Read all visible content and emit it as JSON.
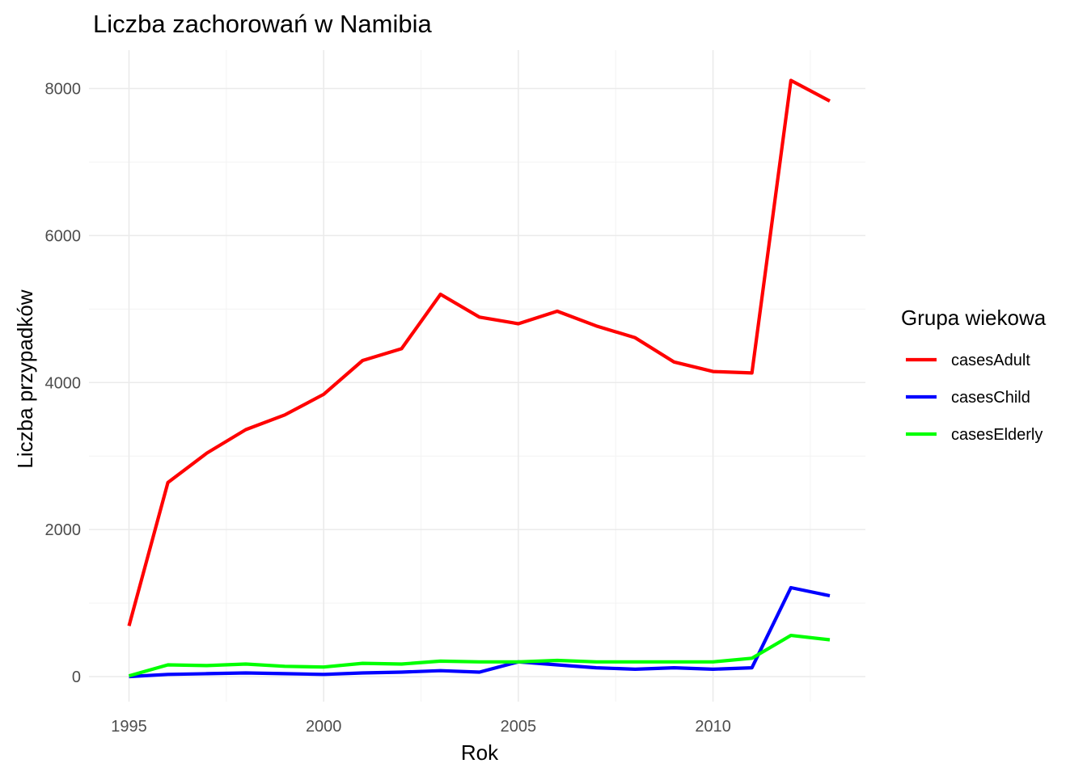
{
  "chart_data": {
    "type": "line",
    "title": "Liczba zachorowań w Namibia",
    "xlabel": "Rok",
    "ylabel": "Liczba przypadków",
    "x": [
      1995,
      1996,
      1997,
      1998,
      1999,
      2000,
      2001,
      2002,
      2003,
      2004,
      2005,
      2006,
      2007,
      2008,
      2009,
      2010,
      2011,
      2012,
      2013
    ],
    "xlim": [
      1995,
      2013
    ],
    "ylim": [
      0,
      8100
    ],
    "x_ticks": [
      "1995",
      "2000",
      "2005",
      "2010"
    ],
    "y_ticks": [
      "0",
      "2000",
      "4000",
      "6000",
      "8000"
    ],
    "grid": true,
    "legend": {
      "title": "Grupa wiekowa",
      "position": "right"
    },
    "series": [
      {
        "name": "casesAdult",
        "color": "#ff0000",
        "values": [
          690,
          2640,
          3040,
          3360,
          3560,
          3840,
          4300,
          4460,
          5200,
          4890,
          4800,
          4970,
          4770,
          4610,
          4280,
          4150,
          4130,
          8110,
          7830
        ]
      },
      {
        "name": "casesChild",
        "color": "#0000ff",
        "values": [
          0,
          30,
          40,
          50,
          40,
          30,
          50,
          60,
          80,
          60,
          200,
          160,
          120,
          100,
          120,
          100,
          120,
          1210,
          1100
        ]
      },
      {
        "name": "casesElderly",
        "color": "#00ff00",
        "values": [
          10,
          160,
          150,
          170,
          140,
          130,
          180,
          170,
          210,
          200,
          200,
          220,
          200,
          200,
          200,
          200,
          250,
          560,
          500
        ]
      }
    ]
  }
}
